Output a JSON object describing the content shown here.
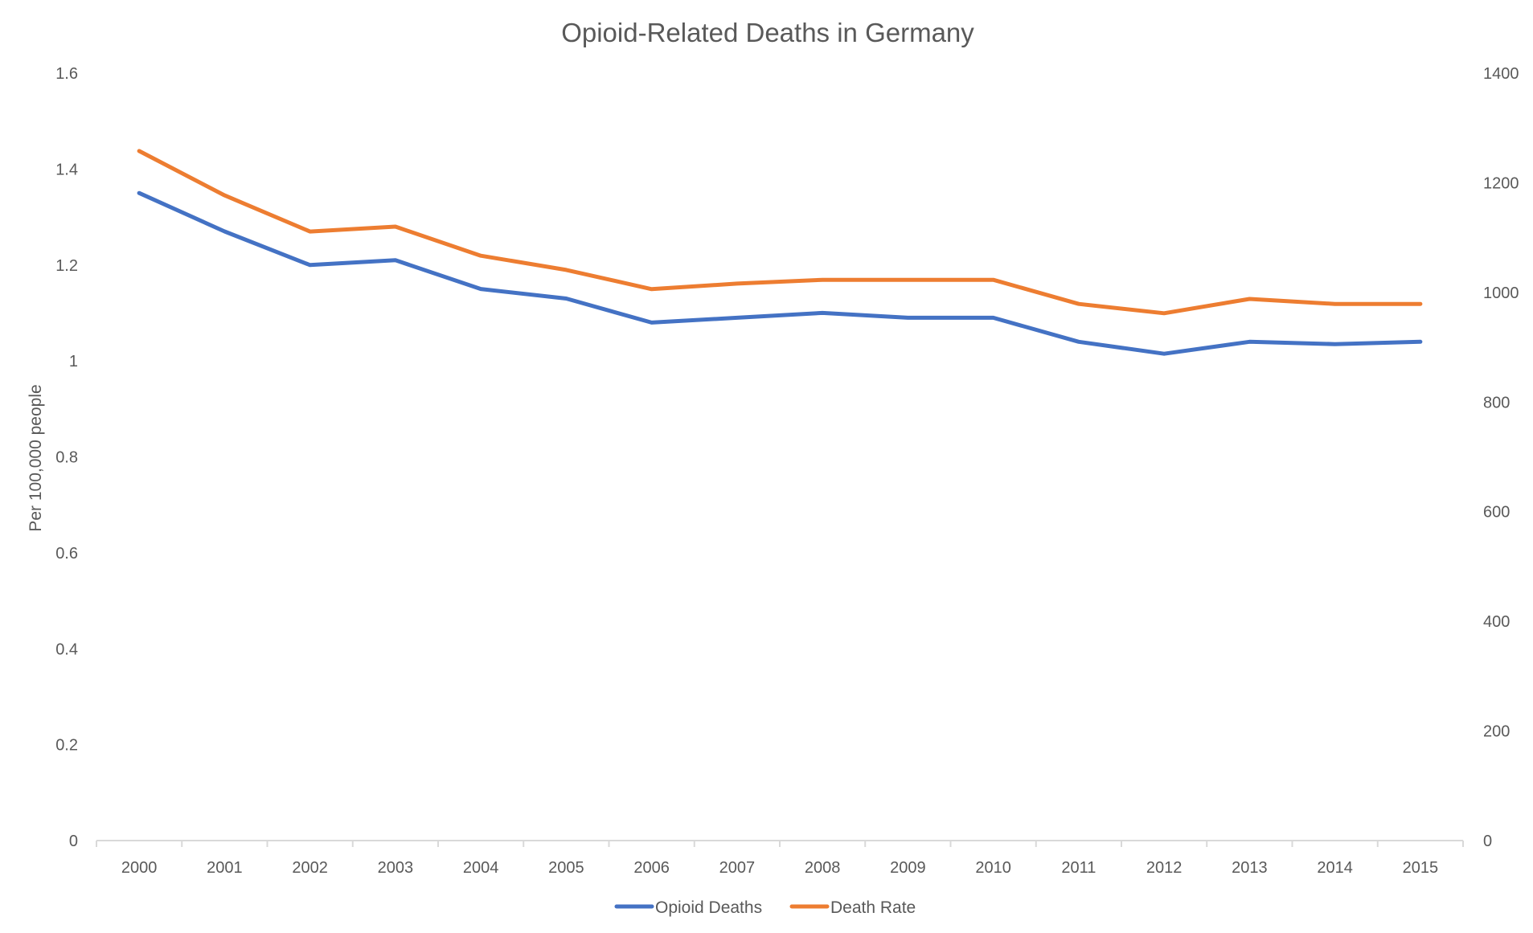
{
  "chart_data": {
    "type": "line",
    "title": "Opioid-Related Deaths in Germany",
    "xlabel": "",
    "ylabel": "Per 100,000 people",
    "y2label": "",
    "categories": [
      "2000",
      "2001",
      "2002",
      "2003",
      "2004",
      "2005",
      "2006",
      "2007",
      "2008",
      "2009",
      "2010",
      "2011",
      "2012",
      "2013",
      "2014",
      "2015"
    ],
    "y_ticks": [
      "0",
      "0.2",
      "0.4",
      "0.6",
      "0.8",
      "1",
      "1.2",
      "1.4",
      "1.6"
    ],
    "y2_ticks": [
      "0",
      "200",
      "400",
      "600",
      "800",
      "1000",
      "1200",
      "1400"
    ],
    "ylim": [
      0,
      1.6
    ],
    "y2lim": [
      0,
      1400
    ],
    "grid": false,
    "legend_position": "bottom",
    "series": [
      {
        "name": "Opioid Deaths",
        "axis": "left",
        "color": "#4472C4",
        "values": [
          1.35,
          1.27,
          1.2,
          1.21,
          1.15,
          1.13,
          1.08,
          1.09,
          1.1,
          1.09,
          1.09,
          1.04,
          1.015,
          1.04,
          1.035,
          1.04
        ]
      },
      {
        "name": "Death Rate",
        "axis": "right",
        "color": "#ED7D31",
        "values": [
          1258,
          1177,
          1111,
          1120,
          1067,
          1041,
          1006,
          1016,
          1023,
          1023,
          1023,
          979,
          962,
          988,
          979,
          979
        ]
      }
    ]
  }
}
